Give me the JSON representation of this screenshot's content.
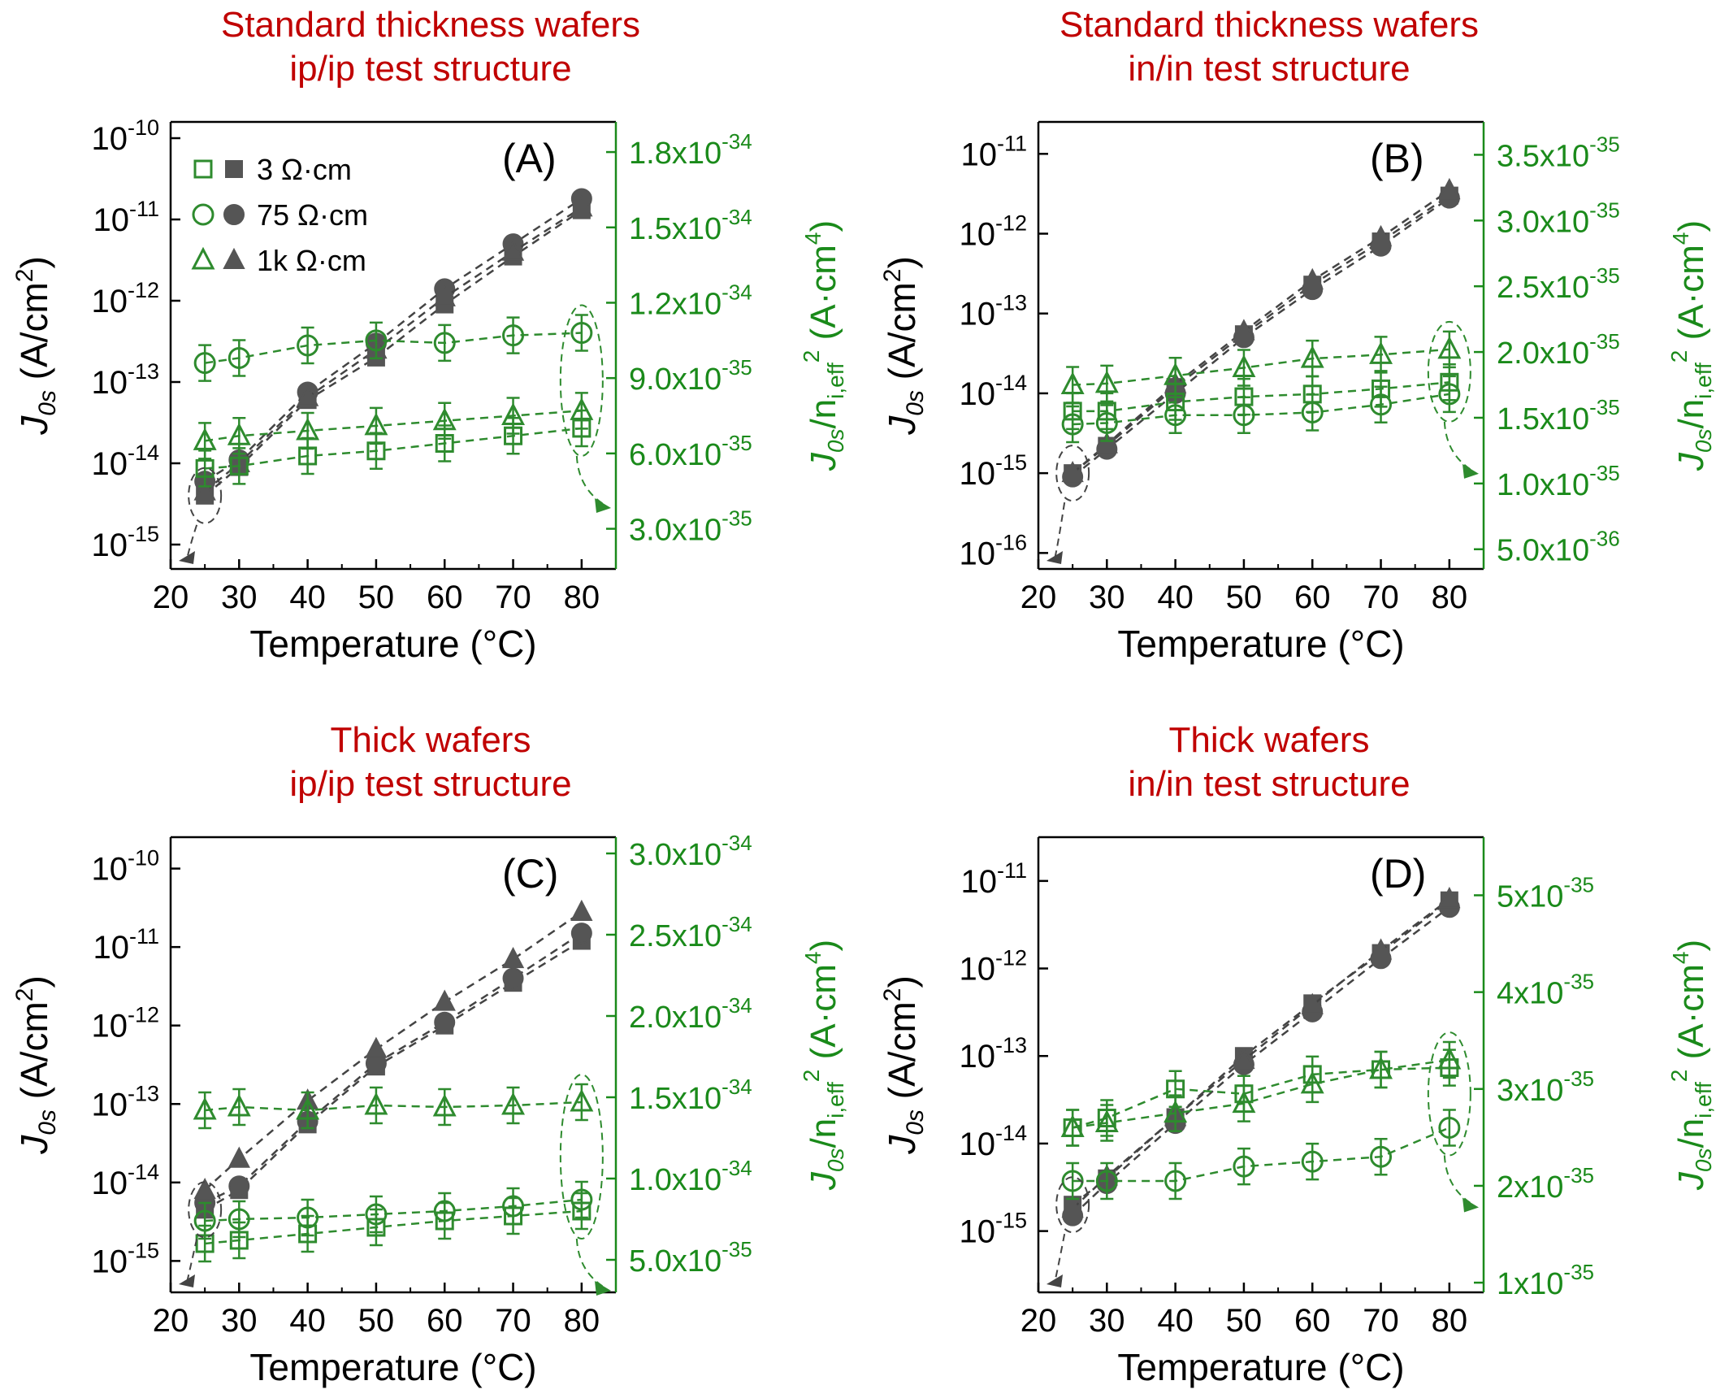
{
  "legend": {
    "entries": [
      {
        "marker": "square",
        "label": "3 Ω·cm"
      },
      {
        "marker": "circle",
        "label": "75 Ω·cm"
      },
      {
        "marker": "triangle",
        "label": "1k Ω·cm"
      }
    ]
  },
  "colors": {
    "title": "#c00000",
    "left_series": "#555555",
    "right_series": "#2e8b2e",
    "right_axis": "#1a8a1a",
    "left_line": "#444444"
  },
  "chart_data": [
    {
      "id": "A",
      "type": "scatter",
      "title_line1": "Standard thickness wafers",
      "title_line2": "ip/ip test structure",
      "panel_label": "(A)",
      "xlabel": "Temperature (°C)",
      "xlim": [
        20,
        85
      ],
      "xticks": [
        20,
        30,
        40,
        50,
        60,
        70,
        80
      ],
      "left_ylabel": "J0s (A/cm2)",
      "left_ylim_exp": [
        -15.3,
        -9.8
      ],
      "left_ticks_exp": [
        -15,
        -14,
        -13,
        -12,
        -11,
        -10
      ],
      "right_ylabel": "J0s/ni,eff2 (A·cm4)",
      "right_ylim": [
        1.4e-35,
        1.92e-34
      ],
      "right_ticks": [
        {
          "v": 3e-35,
          "m": "3.0",
          "e": "-35"
        },
        {
          "v": 6e-35,
          "m": "6.0",
          "e": "-35"
        },
        {
          "v": 9e-35,
          "m": "9.0",
          "e": "-35"
        },
        {
          "v": 1.2e-34,
          "m": "1.2",
          "e": "-34"
        },
        {
          "v": 1.5e-34,
          "m": "1.5",
          "e": "-34"
        },
        {
          "v": 1.8e-34,
          "m": "1.8",
          "e": "-34"
        }
      ],
      "x": [
        25,
        30,
        40,
        50,
        60,
        70,
        80
      ],
      "series_left": [
        {
          "marker": "square",
          "values": [
            4e-15,
            9e-15,
            6e-14,
            2e-13,
            9e-13,
            3.5e-12,
            1.3e-11
          ]
        },
        {
          "marker": "circle",
          "values": [
            6e-15,
            1.1e-14,
            7.5e-14,
            3e-13,
            1.4e-12,
            5e-12,
            1.8e-11
          ]
        },
        {
          "marker": "triangle",
          "values": [
            4.5e-15,
            1e-14,
            6.5e-14,
            2.5e-13,
            1.1e-12,
            4e-12,
            1.4e-11
          ]
        }
      ],
      "series_right": [
        {
          "marker": "square",
          "values": [
            5.4e-35,
            5.5e-35,
            5.9e-35,
            6.1e-35,
            6.4e-35,
            6.7e-35,
            7e-35
          ]
        },
        {
          "marker": "circle",
          "values": [
            9.6e-35,
            9.8e-35,
            1.03e-34,
            1.05e-34,
            1.04e-34,
            1.07e-34,
            1.08e-34
          ]
        },
        {
          "marker": "triangle",
          "values": [
            6.5e-35,
            6.7e-35,
            6.9e-35,
            7.1e-35,
            7.3e-35,
            7.5e-35,
            7.7e-35
          ]
        }
      ]
    },
    {
      "id": "B",
      "type": "scatter",
      "title_line1": "Standard thickness wafers",
      "title_line2": "in/in test structure",
      "panel_label": "(B)",
      "xlabel": "Temperature (°C)",
      "xlim": [
        20,
        85
      ],
      "xticks": [
        20,
        30,
        40,
        50,
        60,
        70,
        80
      ],
      "left_ylabel": "J0s (A/cm2)",
      "left_ylim_exp": [
        -16.2,
        -10.6
      ],
      "left_ticks_exp": [
        -16,
        -15,
        -14,
        -13,
        -12,
        -11
      ],
      "right_ylabel": "J0s/ni,eff2 (A·cm4)",
      "right_ylim": [
        3.5e-36,
        3.75e-35
      ],
      "right_ticks": [
        {
          "v": 5e-36,
          "m": "5.0",
          "e": "-36"
        },
        {
          "v": 1e-35,
          "m": "1.0",
          "e": "-35"
        },
        {
          "v": 1.5e-35,
          "m": "1.5",
          "e": "-35"
        },
        {
          "v": 2e-35,
          "m": "2.0",
          "e": "-35"
        },
        {
          "v": 2.5e-35,
          "m": "2.5",
          "e": "-35"
        },
        {
          "v": 3e-35,
          "m": "3.0",
          "e": "-35"
        },
        {
          "v": 3.5e-35,
          "m": "3.5",
          "e": "-35"
        }
      ],
      "x": [
        25,
        30,
        40,
        50,
        60,
        70,
        80
      ],
      "series_left": [
        {
          "marker": "square",
          "values": [
            1e-15,
            2.2e-15,
            1.2e-14,
            5.5e-14,
            2.3e-13,
            8e-13,
            3e-12
          ]
        },
        {
          "marker": "circle",
          "values": [
            9e-16,
            2e-15,
            1e-14,
            5e-14,
            2e-13,
            7e-13,
            2.8e-12
          ]
        },
        {
          "marker": "triangle",
          "values": [
            1e-15,
            2.3e-15,
            1.3e-14,
            6e-14,
            2.6e-13,
            9e-13,
            3.5e-12
          ]
        }
      ],
      "series_right": [
        {
          "marker": "square",
          "values": [
            1.55e-35,
            1.55e-35,
            1.62e-35,
            1.66e-35,
            1.68e-35,
            1.72e-35,
            1.77e-35
          ]
        },
        {
          "marker": "circle",
          "values": [
            1.45e-35,
            1.46e-35,
            1.52e-35,
            1.52e-35,
            1.54e-35,
            1.6e-35,
            1.68e-35
          ]
        },
        {
          "marker": "triangle",
          "values": [
            1.75e-35,
            1.76e-35,
            1.82e-35,
            1.88e-35,
            1.95e-35,
            1.98e-35,
            2.02e-35
          ]
        }
      ]
    },
    {
      "id": "C",
      "type": "scatter",
      "title_line1": "Thick wafers",
      "title_line2": "ip/ip test structure",
      "panel_label": "(C)",
      "xlabel": "Temperature (°C)",
      "xlim": [
        20,
        85
      ],
      "xticks": [
        20,
        30,
        40,
        50,
        60,
        70,
        80
      ],
      "left_ylabel": "J0s (A/cm2)",
      "left_ylim_exp": [
        -15.4,
        -9.6
      ],
      "left_ticks_exp": [
        -15,
        -14,
        -13,
        -12,
        -11,
        -10
      ],
      "right_ylabel": "J0s/ni,eff2 (A·cm4)",
      "right_ylim": [
        3e-35,
        3.1e-34
      ],
      "right_ticks": [
        {
          "v": 5e-35,
          "m": "5.0",
          "e": "-35"
        },
        {
          "v": 1e-34,
          "m": "1.0",
          "e": "-34"
        },
        {
          "v": 1.5e-34,
          "m": "1.5",
          "e": "-34"
        },
        {
          "v": 2e-34,
          "m": "2.0",
          "e": "-34"
        },
        {
          "v": 2.5e-34,
          "m": "2.5",
          "e": "-34"
        },
        {
          "v": 3e-34,
          "m": "3.0",
          "e": "-34"
        }
      ],
      "x": [
        25,
        30,
        40,
        50,
        60,
        70,
        80
      ],
      "series_left": [
        {
          "marker": "square",
          "values": [
            4.5e-15,
            8e-15,
            5.5e-14,
            3e-13,
            1e-12,
            3.5e-12,
            1.2e-11
          ]
        },
        {
          "marker": "circle",
          "values": [
            5.5e-15,
            9e-15,
            6e-14,
            3.3e-13,
            1.1e-12,
            4e-12,
            1.5e-11
          ]
        },
        {
          "marker": "triangle",
          "values": [
            8e-15,
            2e-14,
            1.1e-13,
            5e-13,
            2e-12,
            7e-12,
            2.8e-11
          ]
        }
      ],
      "series_right": [
        {
          "marker": "square",
          "values": [
            6e-35,
            6.2e-35,
            6.6e-35,
            7e-35,
            7.4e-35,
            7.7e-35,
            8e-35
          ]
        },
        {
          "marker": "circle",
          "values": [
            7.4e-35,
            7.5e-35,
            7.6e-35,
            7.8e-35,
            8e-35,
            8.3e-35,
            8.7e-35
          ]
        },
        {
          "marker": "triangle",
          "values": [
            1.42e-34,
            1.44e-34,
            1.42e-34,
            1.45e-34,
            1.44e-34,
            1.45e-34,
            1.47e-34
          ]
        }
      ]
    },
    {
      "id": "D",
      "type": "scatter",
      "title_line1": "Thick wafers",
      "title_line2": "in/in test structure",
      "panel_label": "(D)",
      "xlabel": "Temperature (°C)",
      "xlim": [
        20,
        85
      ],
      "xticks": [
        20,
        30,
        40,
        50,
        60,
        70,
        80
      ],
      "left_ylabel": "J0s (A/cm2)",
      "left_ylim_exp": [
        -15.7,
        -10.5
      ],
      "left_ticks_exp": [
        -15,
        -14,
        -13,
        -12,
        -11
      ],
      "right_ylabel": "J0s/ni,eff2 (A·cm4)",
      "right_ylim": [
        9e-36,
        5.6e-35
      ],
      "right_ticks": [
        {
          "v": 1e-35,
          "m": "1",
          "e": "-35"
        },
        {
          "v": 2e-35,
          "m": "2",
          "e": "-35"
        },
        {
          "v": 3e-35,
          "m": "3",
          "e": "-35"
        },
        {
          "v": 4e-35,
          "m": "4",
          "e": "-35"
        },
        {
          "v": 5e-35,
          "m": "5",
          "e": "-35"
        }
      ],
      "x": [
        25,
        30,
        40,
        50,
        60,
        70,
        80
      ],
      "series_left": [
        {
          "marker": "square",
          "values": [
            2e-15,
            4e-15,
            2e-14,
            1e-13,
            4e-13,
            1.5e-12,
            6e-12
          ]
        },
        {
          "marker": "circle",
          "values": [
            1.5e-15,
            3.5e-15,
            1.7e-14,
            8e-14,
            3.2e-13,
            1.3e-12,
            5e-12
          ]
        },
        {
          "marker": "triangle",
          "values": [
            1.8e-15,
            4.2e-15,
            2e-14,
            9e-14,
            3.8e-13,
            1.6e-12,
            6.2e-12
          ]
        }
      ],
      "series_right": [
        {
          "marker": "square",
          "values": [
            2.6e-35,
            2.7e-35,
            3e-35,
            2.95e-35,
            3.15e-35,
            3.2e-35,
            3.22e-35
          ]
        },
        {
          "marker": "circle",
          "values": [
            2.05e-35,
            2.05e-35,
            2.05e-35,
            2.2e-35,
            2.25e-35,
            2.3e-35,
            2.6e-35
          ]
        },
        {
          "marker": "triangle",
          "values": [
            2.6e-35,
            2.65e-35,
            2.75e-35,
            2.85e-35,
            3.05e-35,
            3.2e-35,
            3.3e-35
          ]
        }
      ]
    }
  ]
}
